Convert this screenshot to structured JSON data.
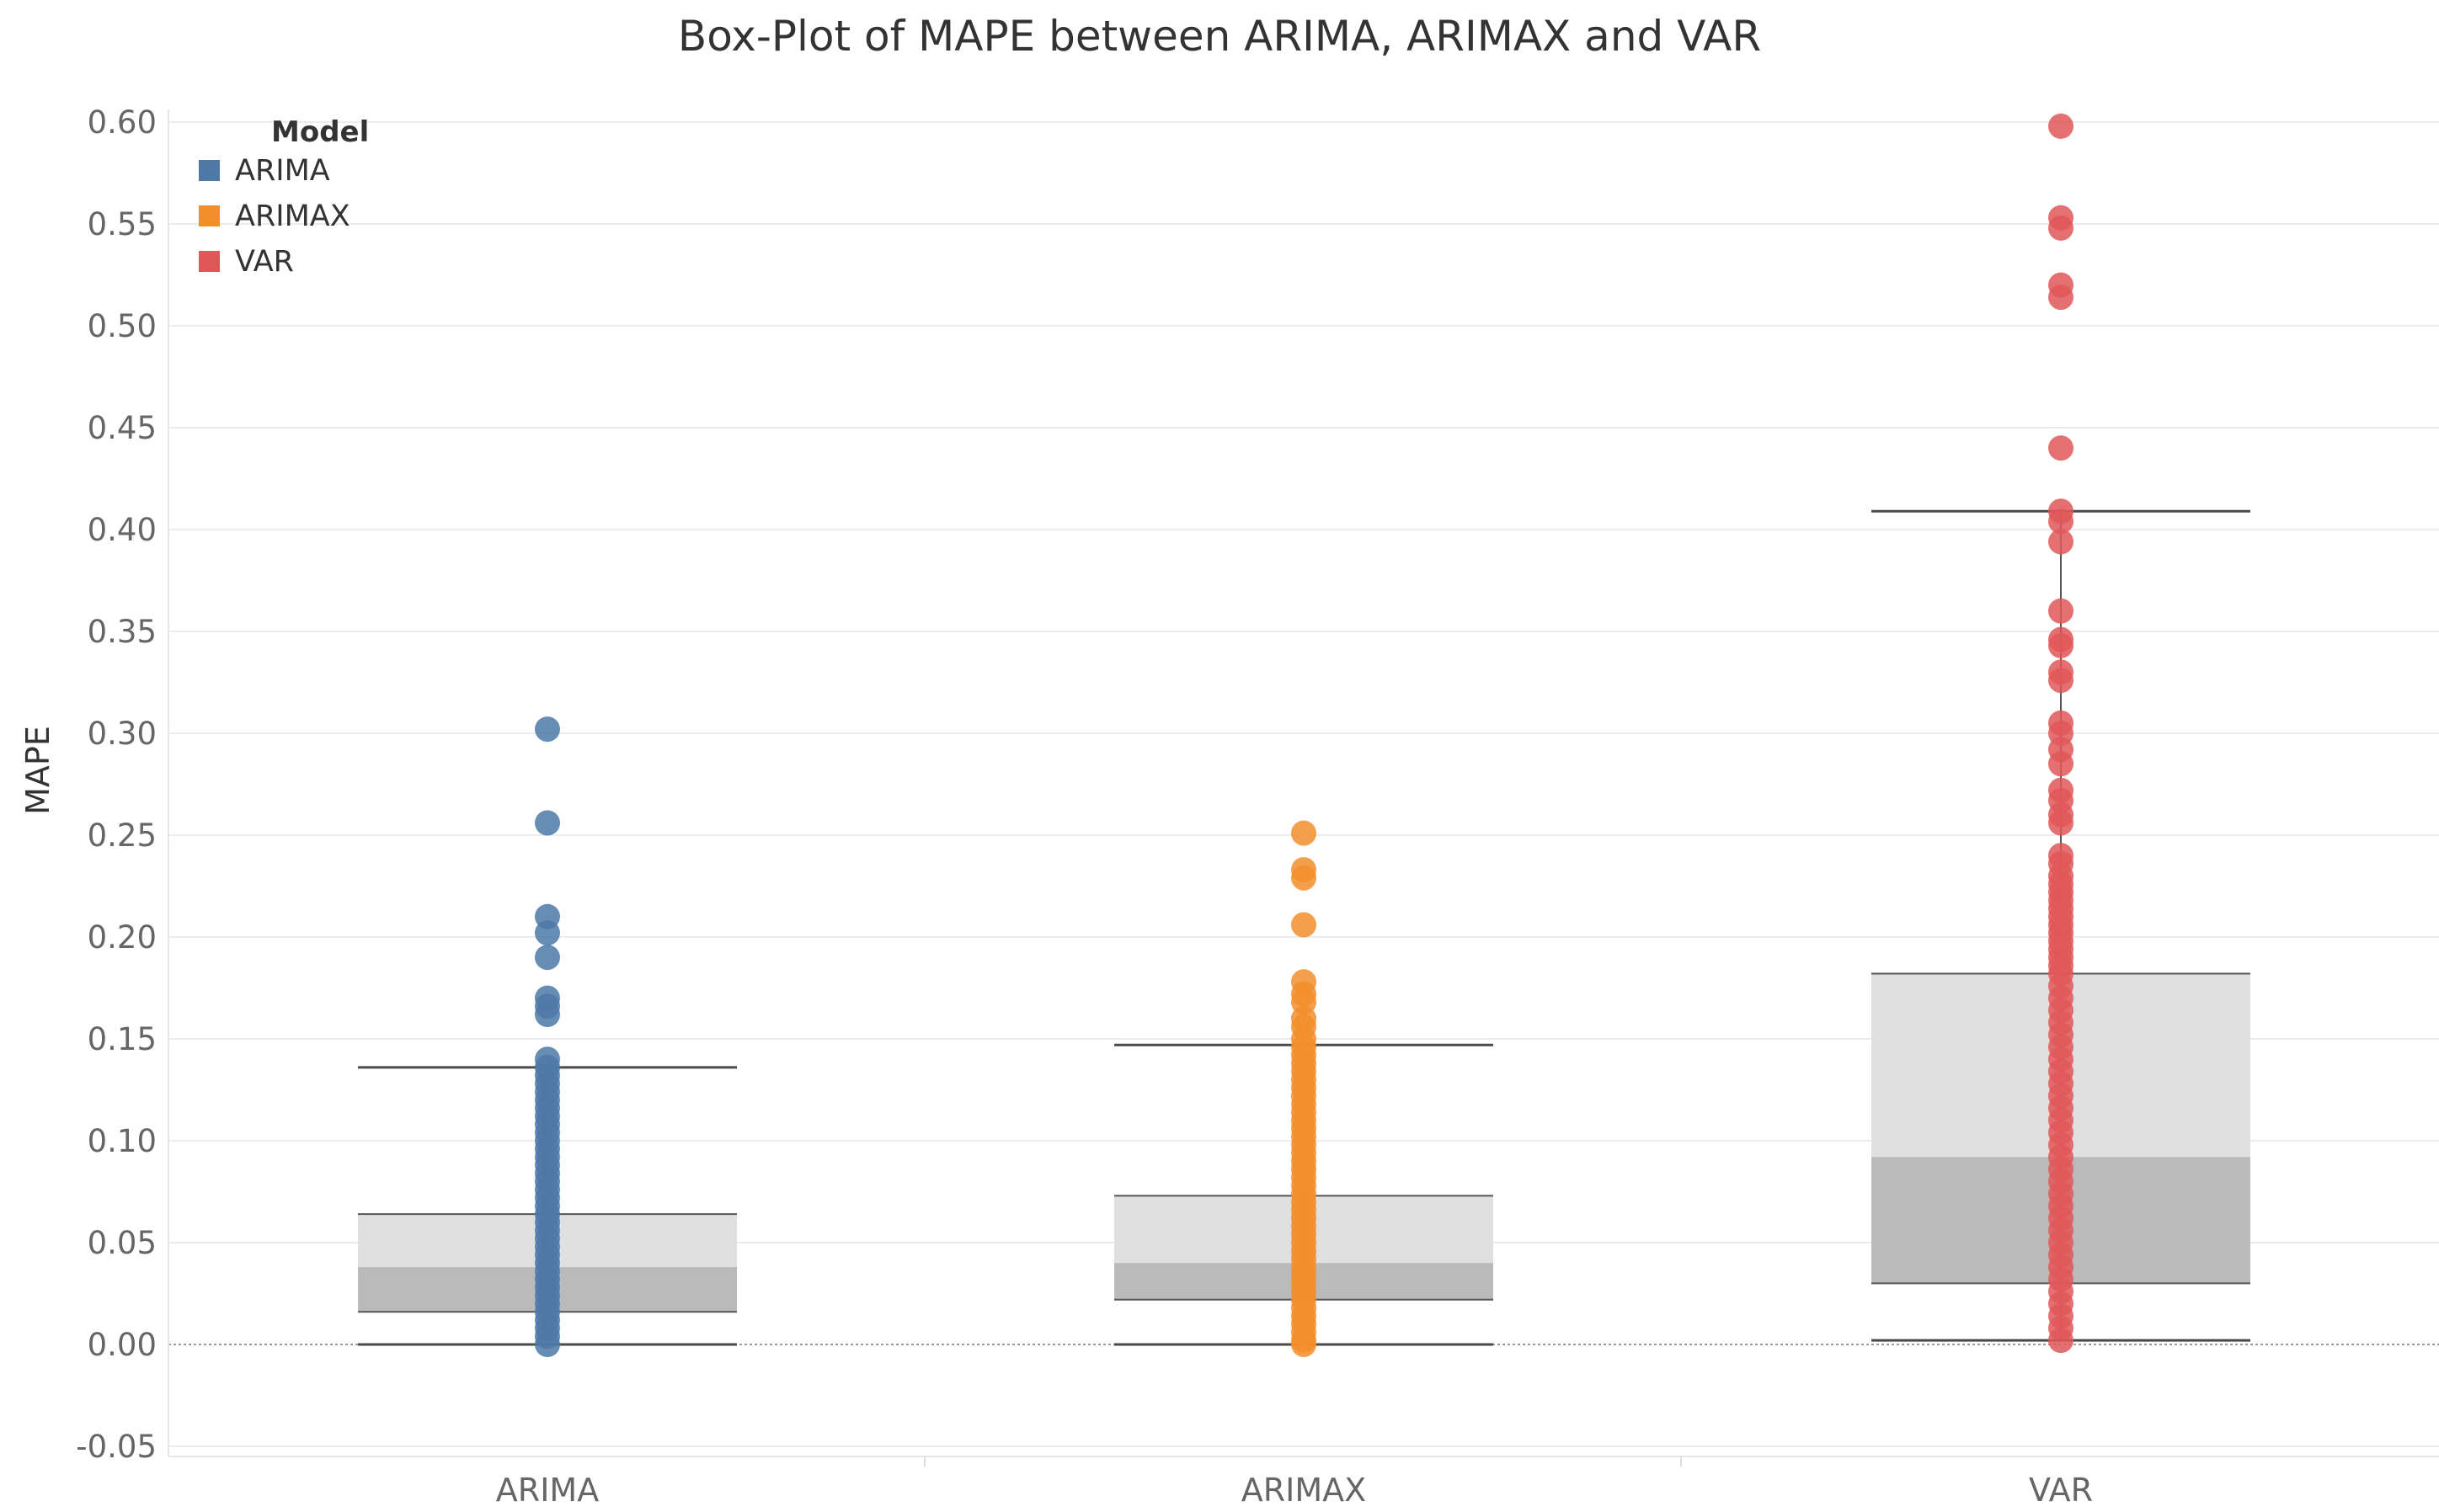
{
  "chart_data": {
    "type": "box",
    "title": "Box-Plot of MAPE between ARIMA, ARIMAX and VAR",
    "ylabel": "MAPE",
    "xlabel": "",
    "ylim": [
      -0.06,
      0.6
    ],
    "yticks": [
      "0.60",
      "0.55",
      "0.50",
      "0.45",
      "0.40",
      "0.35",
      "0.30",
      "0.25",
      "0.20",
      "0.15",
      "0.10",
      "0.05",
      "0.00",
      "-0.05"
    ],
    "ytick_values": [
      0.6,
      0.55,
      0.5,
      0.45,
      0.4,
      0.35,
      0.3,
      0.25,
      0.2,
      0.15,
      0.1,
      0.05,
      0.0,
      -0.05
    ],
    "grid": true,
    "legend": {
      "title": "Model",
      "placement": "top-left"
    },
    "categories": [
      "ARIMA",
      "ARIMAX",
      "VAR"
    ],
    "series": [
      {
        "name": "ARIMA",
        "color": "#4e79a7",
        "box": {
          "lower_whisker": 0.0,
          "q1": 0.016,
          "median": 0.038,
          "q3": 0.064,
          "upper_whisker": 0.136
        },
        "points": [
          0.302,
          0.256,
          0.21,
          0.202,
          0.19,
          0.17,
          0.166,
          0.162,
          0.14,
          0.136,
          0.132,
          0.128,
          0.124,
          0.12,
          0.116,
          0.112,
          0.108,
          0.104,
          0.1,
          0.096,
          0.092,
          0.088,
          0.084,
          0.08,
          0.076,
          0.072,
          0.068,
          0.064,
          0.06,
          0.056,
          0.052,
          0.048,
          0.044,
          0.04,
          0.036,
          0.032,
          0.028,
          0.024,
          0.02,
          0.016,
          0.012,
          0.008,
          0.004,
          0.0
        ]
      },
      {
        "name": "ARIMAX",
        "color": "#f28e2b",
        "box": {
          "lower_whisker": 0.0,
          "q1": 0.022,
          "median": 0.04,
          "q3": 0.073,
          "upper_whisker": 0.147
        },
        "points": [
          0.251,
          0.233,
          0.229,
          0.206,
          0.178,
          0.172,
          0.168,
          0.16,
          0.156,
          0.15,
          0.146,
          0.142,
          0.138,
          0.134,
          0.13,
          0.126,
          0.122,
          0.118,
          0.114,
          0.11,
          0.106,
          0.102,
          0.098,
          0.094,
          0.09,
          0.086,
          0.082,
          0.078,
          0.074,
          0.07,
          0.066,
          0.062,
          0.058,
          0.054,
          0.05,
          0.046,
          0.042,
          0.038,
          0.034,
          0.03,
          0.026,
          0.022,
          0.018,
          0.014,
          0.01,
          0.006,
          0.002,
          0.0
        ]
      },
      {
        "name": "VAR",
        "color": "#e15759",
        "box": {
          "lower_whisker": 0.002,
          "q1": 0.03,
          "median": 0.092,
          "q3": 0.182,
          "upper_whisker": 0.409
        },
        "points": [
          0.598,
          0.553,
          0.548,
          0.52,
          0.514,
          0.44,
          0.409,
          0.404,
          0.394,
          0.36,
          0.346,
          0.343,
          0.33,
          0.326,
          0.305,
          0.3,
          0.292,
          0.285,
          0.272,
          0.267,
          0.26,
          0.256,
          0.24,
          0.236,
          0.23,
          0.226,
          0.222,
          0.218,
          0.214,
          0.21,
          0.206,
          0.202,
          0.198,
          0.194,
          0.19,
          0.186,
          0.182,
          0.176,
          0.17,
          0.164,
          0.158,
          0.152,
          0.146,
          0.14,
          0.134,
          0.128,
          0.122,
          0.116,
          0.11,
          0.104,
          0.098,
          0.092,
          0.086,
          0.08,
          0.074,
          0.068,
          0.062,
          0.056,
          0.05,
          0.044,
          0.038,
          0.032,
          0.026,
          0.02,
          0.014,
          0.008,
          0.002
        ]
      }
    ]
  }
}
